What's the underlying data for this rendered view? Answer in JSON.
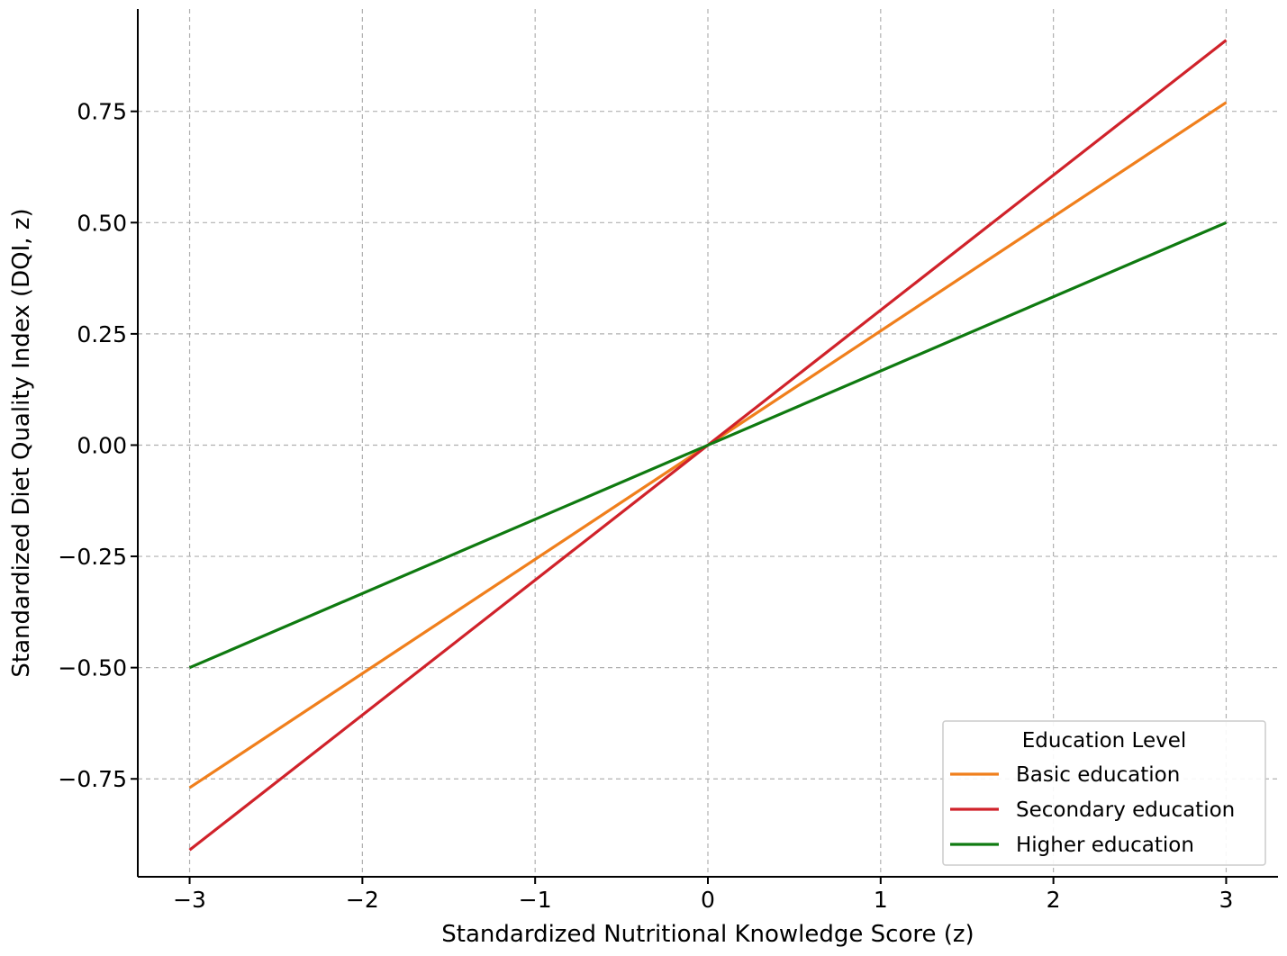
{
  "chart_data": {
    "type": "line",
    "xlabel": "Standardized Nutritional Knowledge Score (z)",
    "ylabel": "Standardized Diet Quality Index (DQI, z)",
    "xlim": [
      -3.3,
      3.3
    ],
    "ylim": [
      -0.97,
      0.98
    ],
    "xticks": [
      -3,
      -2,
      -1,
      0,
      1,
      2,
      3
    ],
    "xtick_labels": [
      "−3",
      "−2",
      "−1",
      "0",
      "1",
      "2",
      "3"
    ],
    "yticks": [
      -0.75,
      -0.5,
      -0.25,
      0,
      0.25,
      0.5,
      0.75
    ],
    "ytick_labels": [
      "−0.75",
      "−0.50",
      "−0.25",
      "0.00",
      "0.25",
      "0.50",
      "0.75"
    ],
    "grid": true,
    "legend": {
      "title": "Education Level",
      "position": "lower-right"
    },
    "series": [
      {
        "name": "Basic education",
        "color": "#f07f1c",
        "x": [
          -3,
          3
        ],
        "y": [
          -0.77,
          0.77
        ]
      },
      {
        "name": "Secondary education",
        "color": "#d0222a",
        "x": [
          -3,
          3
        ],
        "y": [
          -0.91,
          0.91
        ]
      },
      {
        "name": "Higher education",
        "color": "#0f7a10",
        "x": [
          -3,
          3
        ],
        "y": [
          -0.5,
          0.5
        ]
      }
    ]
  }
}
